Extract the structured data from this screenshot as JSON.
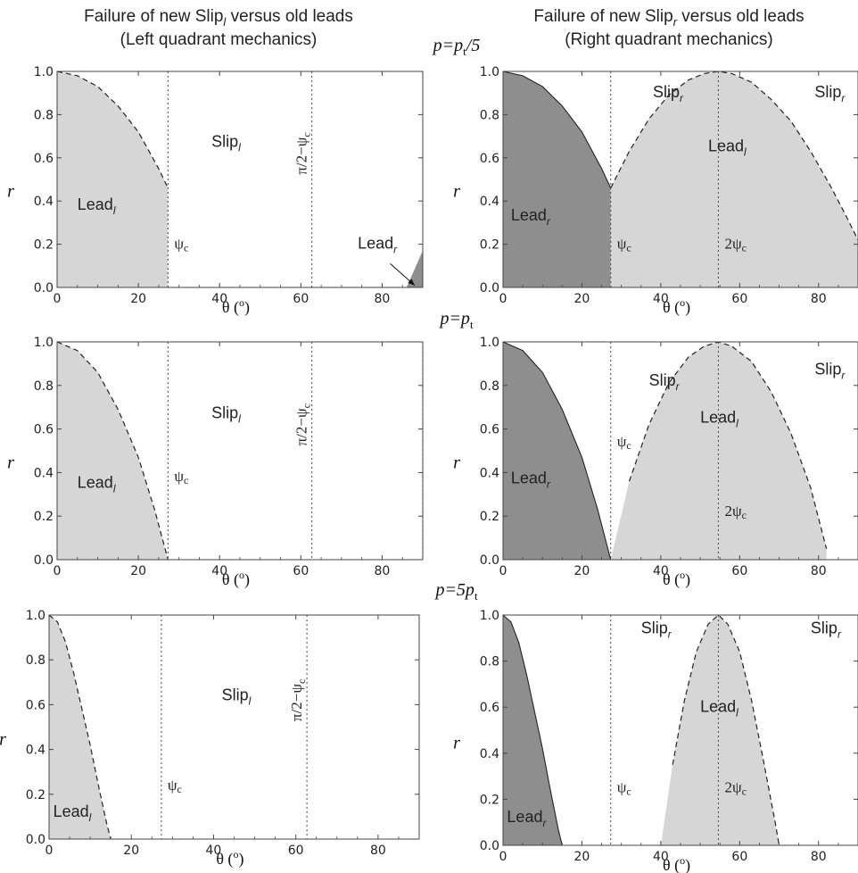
{
  "titles": {
    "left": [
      "Failure of new Slip",
      "l",
      " versus old leads",
      "(Left quadrant mechanics)"
    ],
    "right": [
      "Failure of new Slip",
      "r",
      " versus old leads",
      "(Right quadrant mechanics)"
    ]
  },
  "row_labels": [
    {
      "base": "p=p",
      "sub": "t",
      "tail": "/5"
    },
    {
      "base": "p=p",
      "sub": "t",
      "tail": ""
    },
    {
      "base": "p=5p",
      "sub": "t",
      "tail": ""
    }
  ],
  "chart_data": [
    {
      "type": "area",
      "panel": "left-row-1",
      "xlabel": [
        "θ (",
        "o",
        ")"
      ],
      "ylabel": "r",
      "xlim": [
        0,
        90
      ],
      "ylim": [
        0,
        1.0
      ],
      "xticks": [
        0,
        20,
        40,
        60,
        80
      ],
      "yticks": [
        0.0,
        0.2,
        0.4,
        0.6,
        0.8,
        1.0
      ],
      "regions": [
        {
          "shade": "light",
          "boundary": "dashed",
          "points": [
            [
              0,
              1.0
            ],
            [
              5,
              0.98
            ],
            [
              10,
              0.93
            ],
            [
              15,
              0.84
            ],
            [
              20,
              0.72
            ],
            [
              25,
              0.55
            ],
            [
              27.3,
              0.46
            ],
            [
              27.3,
              0
            ]
          ]
        },
        {
          "shade": "dark",
          "boundary": "solid",
          "points": [
            [
              86,
              0
            ],
            [
              90,
              0.17
            ],
            [
              90,
              0
            ]
          ]
        }
      ],
      "vlines": [
        {
          "x": 27.3,
          "label": "ψ",
          "sub": "c"
        },
        {
          "x": 62.7,
          "label": "π/2−ψ",
          "sub": "c"
        }
      ],
      "labels": [
        {
          "text": "Slip",
          "sub": "l",
          "x": 38,
          "y": 0.65
        },
        {
          "text": "Lead",
          "sub": "l",
          "x": 5,
          "y": 0.36
        },
        {
          "text": "Lead",
          "sub": "r",
          "x": 74,
          "y": 0.18
        }
      ],
      "arrow": {
        "from": [
          82,
          0.11
        ],
        "to": [
          88,
          0.01
        ]
      }
    },
    {
      "type": "area",
      "panel": "right-row-1",
      "xlabel": [
        "θ (",
        "o",
        ")"
      ],
      "ylabel": "r",
      "xlim": [
        0,
        90
      ],
      "ylim": [
        0,
        1.0
      ],
      "xticks": [
        0,
        20,
        40,
        60,
        80
      ],
      "yticks": [
        0.0,
        0.2,
        0.4,
        0.6,
        0.8,
        1.0
      ],
      "regions": [
        {
          "shade": "dark",
          "boundary": "solid",
          "points": [
            [
              0,
              1.0
            ],
            [
              5,
              0.98
            ],
            [
              10,
              0.93
            ],
            [
              15,
              0.84
            ],
            [
              20,
              0.72
            ],
            [
              25,
              0.55
            ],
            [
              27.3,
              0.46
            ],
            [
              27.3,
              0
            ]
          ]
        },
        {
          "shade": "light",
          "boundary": "dashed",
          "points": [
            [
              27.3,
              0.46
            ],
            [
              32,
              0.63
            ],
            [
              37,
              0.78
            ],
            [
              42,
              0.89
            ],
            [
              47,
              0.96
            ],
            [
              51,
              0.99
            ],
            [
              54.6,
              1.0
            ],
            [
              58,
              0.99
            ],
            [
              63,
              0.95
            ],
            [
              68,
              0.87
            ],
            [
              73,
              0.77
            ],
            [
              78,
              0.63
            ],
            [
              83,
              0.47
            ],
            [
              87,
              0.33
            ],
            [
              90,
              0.22
            ],
            [
              90,
              0
            ]
          ]
        }
      ],
      "vlines": [
        {
          "x": 27.3,
          "label": "ψ",
          "sub": "c"
        },
        {
          "x": 54.6,
          "label": "2ψ",
          "sub": "c"
        }
      ],
      "labels": [
        {
          "text": "Slip",
          "sub": "r",
          "x": 38,
          "y": 0.88
        },
        {
          "text": "Slip",
          "sub": "r",
          "x": 79,
          "y": 0.88
        },
        {
          "text": "Lead",
          "sub": "l",
          "x": 52,
          "y": 0.63
        },
        {
          "text": "Lead",
          "sub": "r",
          "x": 2,
          "y": 0.31
        }
      ]
    },
    {
      "type": "area",
      "panel": "left-row-2",
      "xlabel": [
        "θ (",
        "o",
        ")"
      ],
      "ylabel": "r",
      "xlim": [
        0,
        90
      ],
      "ylim": [
        0,
        1.0
      ],
      "xticks": [
        0,
        20,
        40,
        60,
        80
      ],
      "yticks": [
        0.0,
        0.2,
        0.4,
        0.6,
        0.8,
        1.0
      ],
      "regions": [
        {
          "shade": "light",
          "boundary": "dashed",
          "points": [
            [
              0,
              1.0
            ],
            [
              5,
              0.96
            ],
            [
              10,
              0.86
            ],
            [
              15,
              0.69
            ],
            [
              20,
              0.47
            ],
            [
              24,
              0.23
            ],
            [
              27.3,
              0.0
            ]
          ]
        }
      ],
      "vlines": [
        {
          "x": 27.3,
          "label": "ψ",
          "sub": "c"
        },
        {
          "x": 62.7,
          "label": "π/2−ψ",
          "sub": "c"
        },
        {
          "x": 90,
          "label": "",
          "sub": ""
        }
      ],
      "labels": [
        {
          "text": "Slip",
          "sub": "l",
          "x": 38,
          "y": 0.65
        },
        {
          "text": "Lead",
          "sub": "l",
          "x": 5,
          "y": 0.33
        }
      ]
    },
    {
      "type": "area",
      "panel": "right-row-2",
      "xlabel": [
        "θ (",
        "o",
        ")"
      ],
      "ylabel": "r",
      "xlim": [
        0,
        90
      ],
      "ylim": [
        0,
        1.0
      ],
      "xticks": [
        0,
        20,
        40,
        60,
        80
      ],
      "yticks": [
        0.0,
        0.2,
        0.4,
        0.6,
        0.8,
        1.0
      ],
      "regions": [
        {
          "shade": "dark",
          "boundary": "solid",
          "points": [
            [
              0,
              1.0
            ],
            [
              5,
              0.96
            ],
            [
              10,
              0.86
            ],
            [
              15,
              0.69
            ],
            [
              20,
              0.47
            ],
            [
              24,
              0.23
            ],
            [
              27.3,
              0.0
            ]
          ]
        },
        {
          "shade": "light",
          "boundary": "dashed",
          "points": [
            [
              27.3,
              0.0
            ],
            [
              32,
              0.36
            ],
            [
              37,
              0.62
            ],
            [
              42,
              0.81
            ],
            [
              47,
              0.93
            ],
            [
              51,
              0.98
            ],
            [
              54.6,
              1.0
            ],
            [
              58,
              0.98
            ],
            [
              63,
              0.91
            ],
            [
              68,
              0.77
            ],
            [
              73,
              0.58
            ],
            [
              78,
              0.33
            ],
            [
              82,
              0.05
            ],
            [
              82,
              0.0
            ]
          ]
        }
      ],
      "vlines": [
        {
          "x": 27.3,
          "label": "ψ",
          "sub": "c"
        },
        {
          "x": 54.6,
          "label": "2ψ",
          "sub": "c"
        }
      ],
      "labels": [
        {
          "text": "Slip",
          "sub": "r",
          "x": 37,
          "y": 0.8
        },
        {
          "text": "Slip",
          "sub": "r",
          "x": 79,
          "y": 0.85
        },
        {
          "text": "Lead",
          "sub": "l",
          "x": 50,
          "y": 0.63
        },
        {
          "text": "Lead",
          "sub": "r",
          "x": 2,
          "y": 0.35
        }
      ]
    },
    {
      "type": "area",
      "panel": "left-row-3",
      "xlabel": [
        "θ (",
        "o",
        ")"
      ],
      "ylabel": "r",
      "xlim": [
        0,
        90
      ],
      "ylim": [
        0,
        1.0
      ],
      "xticks": [
        0,
        20,
        40,
        60,
        80
      ],
      "yticks": [
        0.0,
        0.2,
        0.4,
        0.6,
        0.8,
        1.0
      ],
      "regions": [
        {
          "shade": "light",
          "boundary": "dashed",
          "points": [
            [
              0,
              1.0
            ],
            [
              2,
              0.97
            ],
            [
              4,
              0.88
            ],
            [
              6,
              0.74
            ],
            [
              8,
              0.58
            ],
            [
              10,
              0.42
            ],
            [
              12,
              0.24
            ],
            [
              14,
              0.07
            ],
            [
              15,
              0.0
            ]
          ]
        }
      ],
      "vlines": [
        {
          "x": 27.3,
          "label": "ψ",
          "sub": "c"
        },
        {
          "x": 62.7,
          "label": "π/2−ψ",
          "sub": "c"
        }
      ],
      "labels": [
        {
          "text": "Slip",
          "sub": "l",
          "x": 42,
          "y": 0.62
        },
        {
          "text": "Lead",
          "sub": "l",
          "x": 1,
          "y": 0.1
        }
      ]
    },
    {
      "type": "area",
      "panel": "right-row-3",
      "xlabel": [
        "θ (",
        "o",
        ")"
      ],
      "ylabel": "r",
      "xlim": [
        0,
        90
      ],
      "ylim": [
        0,
        1.0
      ],
      "xticks": [
        0,
        20,
        40,
        60,
        80
      ],
      "yticks": [
        0.0,
        0.2,
        0.4,
        0.6,
        0.8,
        1.0
      ],
      "regions": [
        {
          "shade": "dark",
          "boundary": "solid",
          "points": [
            [
              0,
              1.0
            ],
            [
              2,
              0.97
            ],
            [
              4,
              0.88
            ],
            [
              6,
              0.74
            ],
            [
              8,
              0.58
            ],
            [
              10,
              0.42
            ],
            [
              12,
              0.24
            ],
            [
              14,
              0.07
            ],
            [
              15,
              0.0
            ]
          ]
        },
        {
          "shade": "light",
          "boundary": "dashed",
          "points": [
            [
              40,
              0.0
            ],
            [
              43,
              0.35
            ],
            [
              46,
              0.63
            ],
            [
              49,
              0.84
            ],
            [
              52,
              0.96
            ],
            [
              54.6,
              1.0
            ],
            [
              57,
              0.96
            ],
            [
              60,
              0.84
            ],
            [
              63,
              0.63
            ],
            [
              66,
              0.37
            ],
            [
              69,
              0.1
            ],
            [
              70,
              0.0
            ]
          ]
        }
      ],
      "vlines": [
        {
          "x": 27.3,
          "label": "ψ",
          "sub": "c"
        },
        {
          "x": 54.6,
          "label": "2ψ",
          "sub": "c"
        }
      ],
      "labels": [
        {
          "text": "Slip",
          "sub": "r",
          "x": 35,
          "y": 0.92
        },
        {
          "text": "Slip",
          "sub": "r",
          "x": 78,
          "y": 0.92
        },
        {
          "text": "Lead",
          "sub": "l",
          "x": 50,
          "y": 0.58
        },
        {
          "text": "Lead",
          "sub": "r",
          "x": 1,
          "y": 0.1
        }
      ]
    }
  ],
  "colors": {
    "dark": "#8e8e8e",
    "light": "#d6d6d6",
    "axis": "#444444",
    "line": "#222222"
  }
}
